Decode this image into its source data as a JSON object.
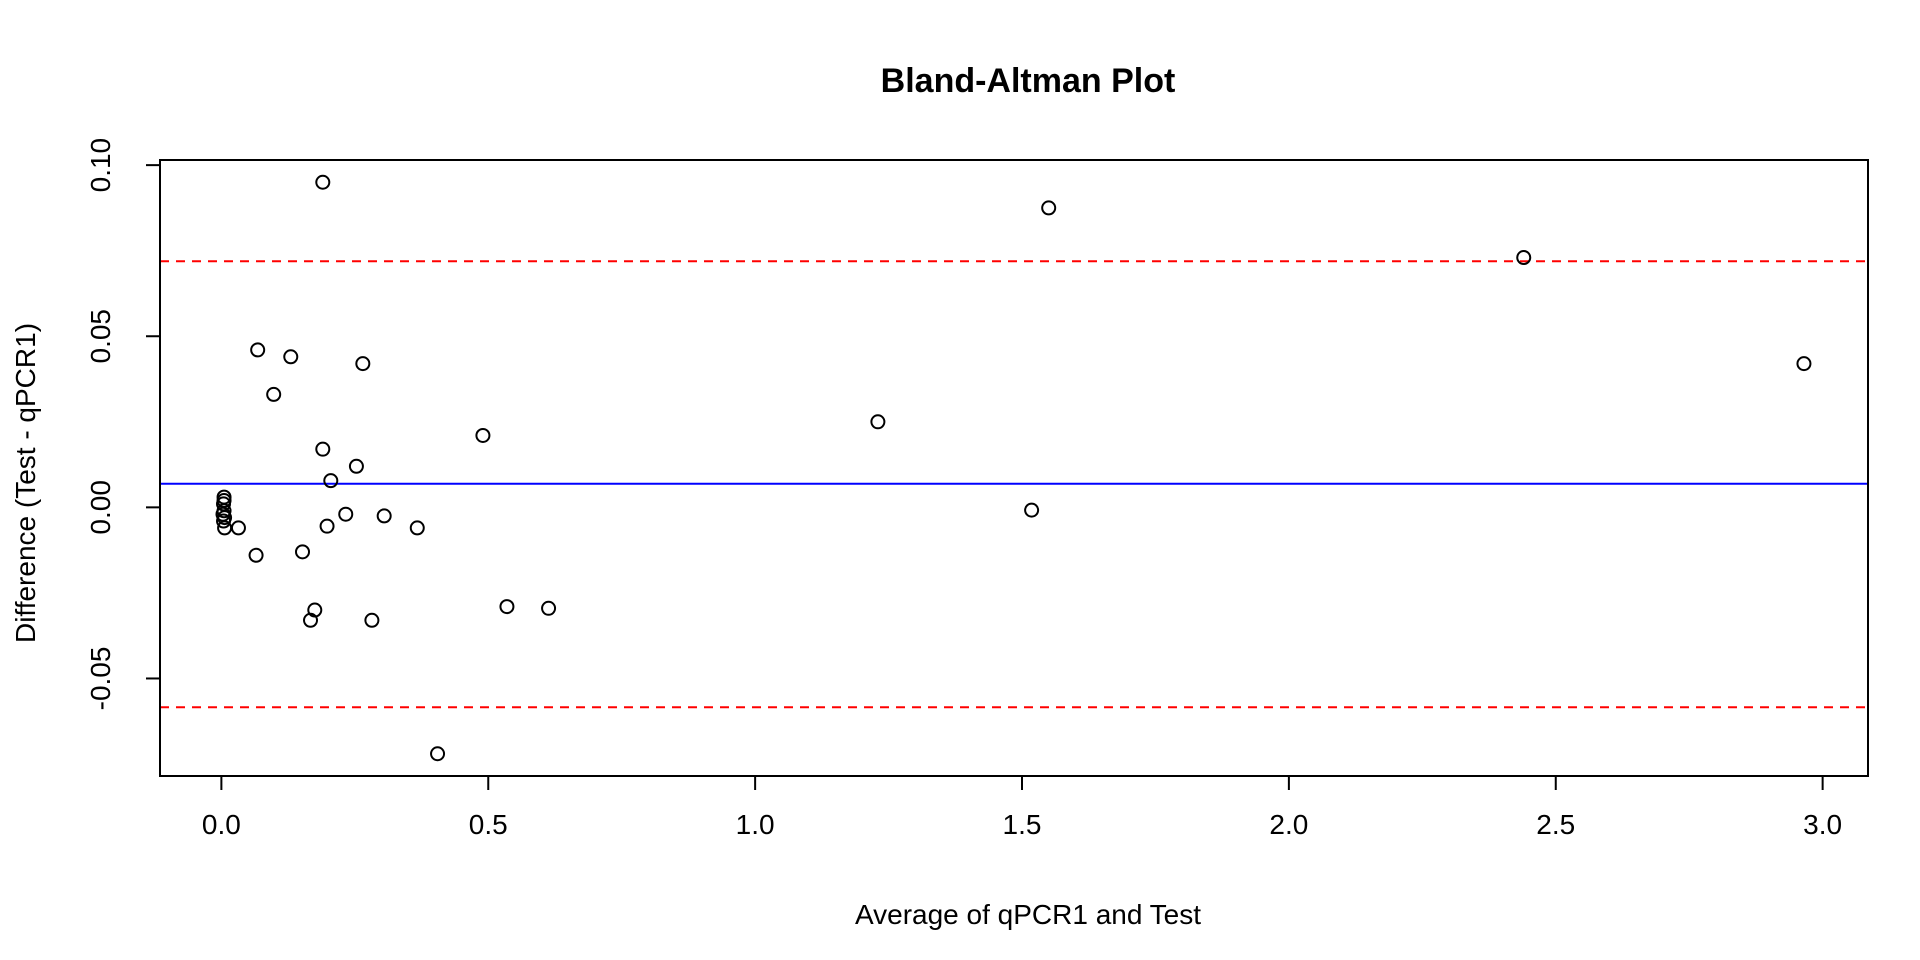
{
  "chart_data": {
    "type": "scatter",
    "title": "Bland-Altman Plot",
    "xlabel": "Average of qPCR1 and Test",
    "ylabel": "Difference (Test - qPCR1)",
    "xlim": [
      -0.115,
      3.085
    ],
    "ylim": [
      -0.0785,
      0.1015
    ],
    "x_ticks": [
      0.0,
      0.5,
      1.0,
      1.5,
      2.0,
      2.5,
      3.0
    ],
    "x_tick_labels": [
      "0.0",
      "0.5",
      "1.0",
      "1.5",
      "2.0",
      "2.5",
      "3.0"
    ],
    "y_ticks": [
      -0.05,
      0.0,
      0.05,
      0.1
    ],
    "y_tick_labels": [
      "-0.05",
      "0.00",
      "0.05",
      "0.10"
    ],
    "grid": false,
    "lines": {
      "mean_difference": {
        "y": 0.0069,
        "color": "#0000ff",
        "style": "solid"
      },
      "upper_limit": {
        "y": 0.0719,
        "color": "#ff0000",
        "style": "dashed"
      },
      "lower_limit": {
        "y": -0.0584,
        "color": "#ff0000",
        "style": "dashed"
      }
    },
    "points": [
      {
        "x": 0.005,
        "y": 0.003
      },
      {
        "x": 0.005,
        "y": 0.002
      },
      {
        "x": 0.004,
        "y": 0.001
      },
      {
        "x": 0.005,
        "y": -0.001
      },
      {
        "x": 0.003,
        "y": -0.002
      },
      {
        "x": 0.006,
        "y": -0.003
      },
      {
        "x": 0.004,
        "y": -0.004
      },
      {
        "x": 0.006,
        "y": -0.006
      },
      {
        "x": 0.032,
        "y": -0.006
      },
      {
        "x": 0.068,
        "y": 0.046
      },
      {
        "x": 0.065,
        "y": -0.014
      },
      {
        "x": 0.098,
        "y": 0.033
      },
      {
        "x": 0.13,
        "y": 0.044
      },
      {
        "x": 0.152,
        "y": -0.013
      },
      {
        "x": 0.167,
        "y": -0.033
      },
      {
        "x": 0.175,
        "y": -0.03
      },
      {
        "x": 0.19,
        "y": 0.095
      },
      {
        "x": 0.19,
        "y": 0.017
      },
      {
        "x": 0.198,
        "y": -0.0055
      },
      {
        "x": 0.205,
        "y": 0.0078
      },
      {
        "x": 0.233,
        "y": -0.002
      },
      {
        "x": 0.253,
        "y": 0.012
      },
      {
        "x": 0.265,
        "y": 0.042
      },
      {
        "x": 0.282,
        "y": -0.033
      },
      {
        "x": 0.305,
        "y": -0.0025
      },
      {
        "x": 0.367,
        "y": -0.006
      },
      {
        "x": 0.405,
        "y": -0.072
      },
      {
        "x": 0.49,
        "y": 0.021
      },
      {
        "x": 0.535,
        "y": -0.029
      },
      {
        "x": 0.613,
        "y": -0.0295
      },
      {
        "x": 1.23,
        "y": 0.025
      },
      {
        "x": 1.518,
        "y": -0.0008
      },
      {
        "x": 1.55,
        "y": 0.0875
      },
      {
        "x": 2.44,
        "y": 0.073
      },
      {
        "x": 2.965,
        "y": 0.042
      }
    ]
  }
}
